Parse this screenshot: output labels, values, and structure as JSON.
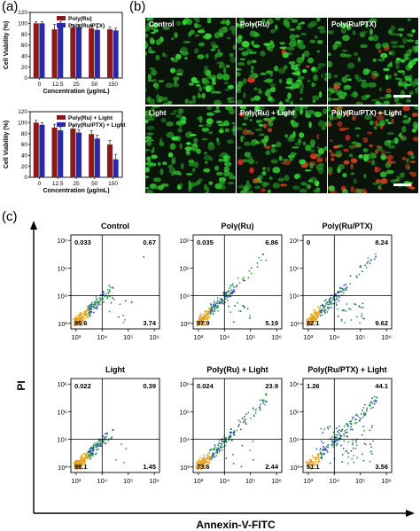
{
  "panel_labels": {
    "a": "(a)",
    "b": "(b)",
    "c": "(c)"
  },
  "chart_data": [
    {
      "type": "bar",
      "ylabel": "Cell Viability (%)",
      "xlabel": "Concentration (μg/mL)",
      "categories": [
        "0",
        "12.5",
        "25",
        "50",
        "150"
      ],
      "ylim": [
        0,
        120
      ],
      "yticks": [
        "0",
        "20",
        "40",
        "60",
        "80",
        "100",
        "120"
      ],
      "legend_position": "top-right",
      "series": [
        {
          "name": "Poly(Ru)",
          "color": "#8b1a1a",
          "values": [
            100,
            89,
            93,
            91,
            89
          ],
          "errors": [
            3,
            9,
            5,
            6,
            4
          ]
        },
        {
          "name": "Poly(Ru/PTX)",
          "color": "#2a2aa8",
          "values": [
            100,
            96,
            93,
            88,
            87
          ],
          "errors": [
            3,
            7,
            5,
            5,
            4
          ]
        }
      ]
    },
    {
      "type": "bar",
      "ylabel": "Cell Viability (%)",
      "xlabel": "Concentration (μg/mL)",
      "categories": [
        "0",
        "12.5",
        "25",
        "50",
        "150"
      ],
      "ylim": [
        0,
        120
      ],
      "yticks": [
        "0",
        "20",
        "40",
        "60",
        "80",
        "100",
        "120"
      ],
      "legend_position": "top-right",
      "series": [
        {
          "name": "Poly(Ru) + Light",
          "color": "#8b1a1a",
          "values": [
            100,
            91,
            89,
            79,
            60
          ],
          "errors": [
            4,
            6,
            5,
            6,
            7
          ]
        },
        {
          "name": "Poly(Ru/PTX) + Light",
          "color": "#2a2aa8",
          "values": [
            96,
            86,
            82,
            71,
            33
          ],
          "errors": [
            4,
            5,
            5,
            6,
            9
          ]
        }
      ]
    },
    {
      "type": "scatter",
      "xlabel": "Annexin-V-FITC",
      "ylabel": "PI",
      "xticks": [
        "10³",
        "10⁴",
        "10⁵",
        "10⁶"
      ],
      "yticks": [
        "10⁶",
        "10⁵",
        "10⁴",
        "10³"
      ],
      "panels": [
        {
          "title": "Control",
          "q_ul": "0.033",
          "q_ur": "0.67",
          "q_ll": "95.6",
          "q_lr": "3.74"
        },
        {
          "title": "Poly(Ru)",
          "q_ul": "0.035",
          "q_ur": "6.86",
          "q_ll": "87.9",
          "q_lr": "5.19"
        },
        {
          "title": "Poly(Ru/PTX)",
          "q_ul": "0",
          "q_ur": "8.24",
          "q_ll": "82.1",
          "q_lr": "9.62"
        },
        {
          "title": "Light",
          "q_ul": "0.022",
          "q_ur": "0.39",
          "q_ll": "98.1",
          "q_lr": "1.45"
        },
        {
          "title": "Poly(Ru) + Light",
          "q_ul": "0.024",
          "q_ur": "23.9",
          "q_ll": "73.6",
          "q_lr": "2.44"
        },
        {
          "title": "Poly(Ru/PTX) + Light",
          "q_ul": "1.26",
          "q_ur": "44.1",
          "q_ll": "51.1",
          "q_lr": "3.56"
        }
      ]
    }
  ],
  "microscopy": {
    "labels": [
      "Control",
      "Poly(Ru)",
      "Poly(Ru/PTX)",
      "Light",
      "Poly(Ru) + Light",
      "Poly(Ru/PTX) + Light"
    ]
  },
  "colors": {
    "green": "#2fa82f",
    "red": "#c0392b",
    "bg_dark": "#0b140b"
  }
}
